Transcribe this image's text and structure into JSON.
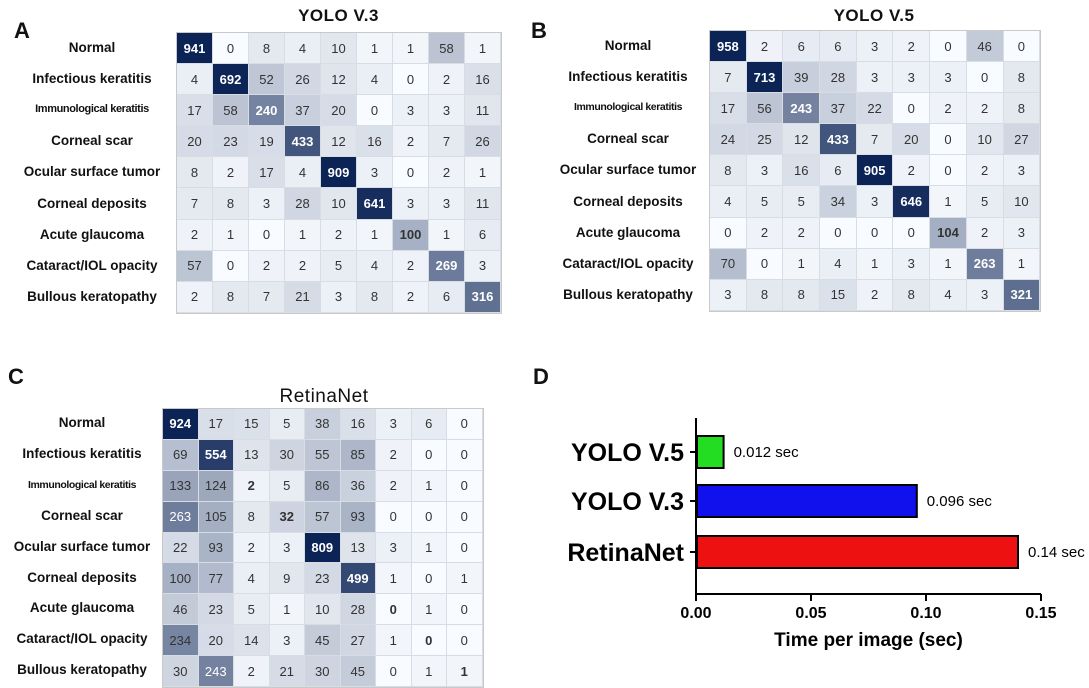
{
  "panels": {
    "a": {
      "letter": "A",
      "chart_data": {
        "type": "heatmap",
        "title": "YOLO V.3",
        "row_labels": [
          "Normal",
          "Infectious keratitis",
          "Immunological keratitis",
          "Corneal scar",
          "Ocular surface tumor",
          "Corneal deposits",
          "Acute glaucoma",
          "Cataract/IOL opacity",
          "Bullous keratopathy"
        ],
        "matrix": [
          [
            941,
            0,
            8,
            4,
            10,
            1,
            1,
            58,
            1
          ],
          [
            4,
            692,
            52,
            26,
            12,
            4,
            0,
            2,
            16
          ],
          [
            17,
            58,
            240,
            37,
            20,
            0,
            3,
            3,
            11
          ],
          [
            20,
            23,
            19,
            433,
            12,
            16,
            2,
            7,
            26
          ],
          [
            8,
            2,
            17,
            4,
            909,
            3,
            0,
            2,
            1
          ],
          [
            7,
            8,
            3,
            28,
            10,
            641,
            3,
            3,
            11
          ],
          [
            2,
            1,
            0,
            1,
            2,
            1,
            100,
            1,
            6
          ],
          [
            57,
            0,
            2,
            2,
            5,
            4,
            2,
            269,
            3
          ],
          [
            2,
            8,
            7,
            21,
            3,
            8,
            2,
            6,
            316
          ]
        ]
      }
    },
    "b": {
      "letter": "B",
      "chart_data": {
        "type": "heatmap",
        "title": "YOLO V.5",
        "row_labels": [
          "Normal",
          "Infectious keratitis",
          "Immunological keratitis",
          "Corneal scar",
          "Ocular surface tumor",
          "Corneal deposits",
          "Acute glaucoma",
          "Cataract/IOL opacity",
          "Bullous keratopathy"
        ],
        "matrix": [
          [
            958,
            2,
            6,
            6,
            3,
            2,
            0,
            46,
            0
          ],
          [
            7,
            713,
            39,
            28,
            3,
            3,
            3,
            0,
            8
          ],
          [
            17,
            56,
            243,
            37,
            22,
            0,
            2,
            2,
            8
          ],
          [
            24,
            25,
            12,
            433,
            7,
            20,
            0,
            10,
            27
          ],
          [
            8,
            3,
            16,
            6,
            905,
            2,
            0,
            2,
            3
          ],
          [
            4,
            5,
            5,
            34,
            3,
            646,
            1,
            5,
            10
          ],
          [
            0,
            2,
            2,
            0,
            0,
            0,
            104,
            2,
            3
          ],
          [
            70,
            0,
            1,
            4,
            1,
            3,
            1,
            263,
            1
          ],
          [
            3,
            8,
            8,
            15,
            2,
            8,
            4,
            3,
            321
          ]
        ]
      }
    },
    "c": {
      "letter": "C",
      "chart_data": {
        "type": "heatmap",
        "title": "RetinaNet",
        "row_labels": [
          "Normal",
          "Infectious keratitis",
          "Immunological keratitis",
          "Corneal scar",
          "Ocular surface tumor",
          "Corneal deposits",
          "Acute glaucoma",
          "Cataract/IOL opacity",
          "Bullous keratopathy"
        ],
        "matrix": [
          [
            924,
            17,
            15,
            5,
            38,
            16,
            3,
            6,
            0
          ],
          [
            69,
            554,
            13,
            30,
            55,
            85,
            2,
            0,
            0
          ],
          [
            133,
            124,
            2,
            5,
            86,
            36,
            2,
            1,
            0
          ],
          [
            263,
            105,
            8,
            32,
            57,
            93,
            0,
            0,
            0
          ],
          [
            22,
            93,
            2,
            3,
            809,
            13,
            3,
            1,
            0
          ],
          [
            100,
            77,
            4,
            9,
            23,
            499,
            1,
            0,
            1
          ],
          [
            46,
            23,
            5,
            1,
            10,
            28,
            0,
            1,
            0
          ],
          [
            234,
            20,
            14,
            3,
            45,
            27,
            1,
            0,
            0
          ],
          [
            30,
            243,
            2,
            21,
            30,
            45,
            0,
            1,
            1
          ]
        ]
      }
    },
    "d": {
      "letter": "D",
      "chart_data": {
        "type": "bar",
        "orientation": "horizontal",
        "categories": [
          "YOLO V.5",
          "YOLO V.3",
          "RetinaNet"
        ],
        "values": [
          0.012,
          0.096,
          0.14
        ],
        "value_labels": [
          "0.012 sec",
          "0.096 sec",
          "0.14 sec"
        ],
        "colors": [
          "#22dd22",
          "#1111ee",
          "#ee1111"
        ],
        "xlabel": "Time per image (sec)",
        "xlim": [
          0,
          0.15
        ],
        "xticks": [
          "0.00",
          "0.05",
          "0.10",
          "0.15"
        ],
        "grid": false
      }
    }
  }
}
